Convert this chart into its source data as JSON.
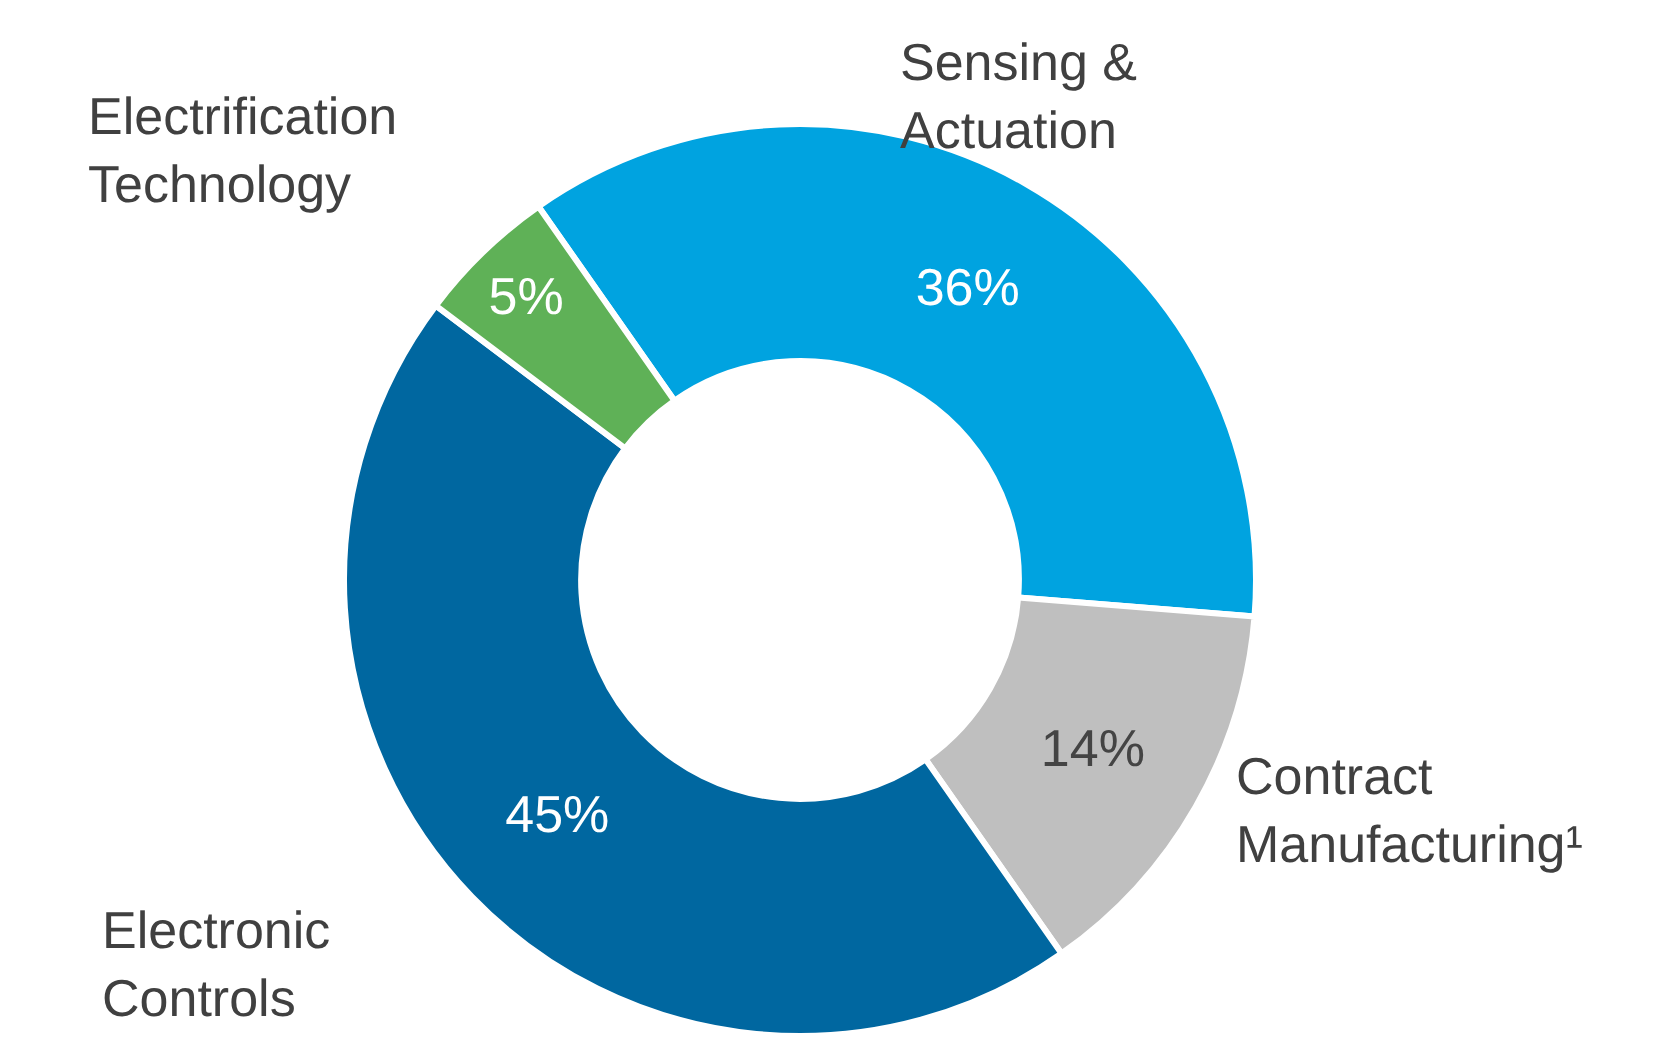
{
  "chart_data": {
    "type": "donut",
    "categories": [
      "Sensing &\nActuation",
      "Contract\nManufacturing¹",
      "Electronic\nControls",
      "Electrification\nTechnology"
    ],
    "values": [
      36,
      14,
      45,
      5
    ],
    "value_labels": [
      "36%",
      "14%",
      "45%",
      "5%"
    ],
    "colors": [
      "#00a3e0",
      "#bfbfbf",
      "#0067a0",
      "#5fb157"
    ],
    "legend": false
  }
}
